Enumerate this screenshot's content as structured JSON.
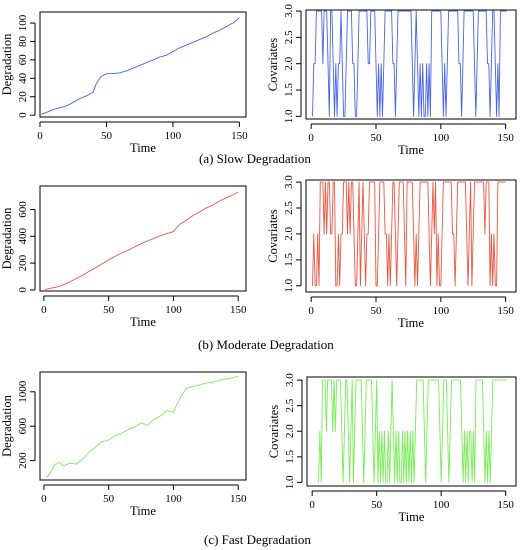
{
  "chart_data": [
    {
      "type": "line",
      "panel": "(a) left",
      "title": "",
      "xlabel": "Time",
      "ylabel": "Degradation",
      "xlim": [
        0,
        155
      ],
      "ylim": [
        -2,
        112
      ],
      "xticks": [
        0,
        50,
        100,
        150
      ],
      "xtick_labels": [
        "0",
        "50",
        "100",
        "150"
      ],
      "yticks": [
        0,
        20,
        40,
        60,
        80,
        100
      ],
      "ytick_labels": [
        "0",
        "20",
        "40",
        "60",
        "80",
        "100"
      ],
      "color": "#4a64e8",
      "x": [
        1,
        5,
        10,
        15,
        20,
        25,
        30,
        35,
        40,
        42,
        44,
        46,
        50,
        55,
        60,
        65,
        70,
        75,
        80,
        85,
        90,
        95,
        100,
        105,
        110,
        115,
        120,
        125,
        130,
        135,
        140,
        145,
        148,
        150
      ],
      "y": [
        1,
        3,
        6,
        8,
        10,
        14,
        18,
        21,
        25,
        33,
        38,
        42,
        45,
        45,
        46,
        48,
        51,
        54,
        57,
        60,
        63,
        65,
        69,
        73,
        76,
        79,
        82,
        85,
        89,
        92,
        96,
        100,
        103,
        106
      ]
    },
    {
      "type": "line",
      "panel": "(a) right",
      "title": "",
      "xlabel": "Time",
      "ylabel": "Covariates",
      "xlim": [
        -4,
        158
      ],
      "ylim": [
        0.95,
        3.02
      ],
      "xticks": [
        0,
        50,
        100,
        150
      ],
      "xtick_labels": [
        "0",
        "50",
        "100",
        "150"
      ],
      "yticks": [
        1.0,
        1.5,
        2.0,
        2.5,
        3.0
      ],
      "ytick_labels": [
        "1.0",
        "1.5",
        "2.0",
        "2.5",
        "3.0"
      ],
      "color": "#4a64e8",
      "t_start": 1,
      "values": [
        1,
        2,
        2,
        3,
        3,
        3,
        3,
        3,
        2,
        3,
        3,
        3,
        2,
        1,
        3,
        3,
        2,
        1,
        2,
        1,
        2,
        2,
        3,
        2,
        1,
        1,
        2,
        3,
        3,
        3,
        3,
        2,
        2,
        1,
        1,
        2,
        3,
        3,
        3,
        3,
        3,
        3,
        3,
        2,
        2,
        3,
        3,
        3,
        3,
        2,
        1,
        2,
        1,
        2,
        1,
        2,
        3,
        3,
        3,
        3,
        3,
        3,
        2,
        2,
        1,
        2,
        3,
        3,
        3,
        3,
        3,
        3,
        3,
        3,
        3,
        3,
        3,
        2,
        1,
        2,
        3,
        2,
        1,
        2,
        1,
        2,
        1,
        1,
        2,
        1,
        2,
        1,
        3,
        3,
        3,
        3,
        3,
        3,
        3,
        3,
        2,
        1,
        2,
        1,
        2,
        3,
        3,
        3,
        3,
        3,
        3,
        3,
        3,
        2,
        2,
        1,
        2,
        3,
        3,
        3,
        3,
        3,
        3,
        3,
        3,
        2,
        1,
        2,
        3,
        3,
        3,
        3,
        3,
        3,
        3,
        2,
        2,
        1,
        2,
        3,
        3,
        2,
        1,
        2,
        1,
        3,
        3,
        3,
        3,
        3,
        3
      ]
    },
    {
      "type": "line",
      "panel": "(b) left",
      "title": "",
      "xlabel": "Time",
      "ylabel": "Degradation",
      "xlim": [
        -3,
        156
      ],
      "ylim": [
        -8,
        775
      ],
      "xticks": [
        0,
        50,
        100,
        150
      ],
      "xtick_labels": [
        "0",
        "50",
        "100",
        "150"
      ],
      "yticks": [
        0,
        200,
        400,
        600
      ],
      "ytick_labels": [
        "0",
        "200",
        "400",
        "600"
      ],
      "color": "#ee5540",
      "x": [
        1,
        5,
        10,
        15,
        20,
        25,
        30,
        35,
        40,
        45,
        50,
        55,
        60,
        65,
        70,
        75,
        80,
        85,
        90,
        95,
        100,
        103,
        105,
        110,
        115,
        120,
        125,
        130,
        135,
        140,
        145,
        150
      ],
      "y": [
        2,
        12,
        22,
        38,
        60,
        85,
        110,
        140,
        165,
        195,
        225,
        250,
        275,
        295,
        320,
        345,
        365,
        385,
        405,
        420,
        435,
        470,
        490,
        520,
        555,
        580,
        610,
        630,
        660,
        685,
        705,
        730
      ]
    },
    {
      "type": "line",
      "panel": "(b) right",
      "title": "",
      "xlabel": "Time",
      "ylabel": "Covariates",
      "xlim": [
        -4,
        158
      ],
      "ylim": [
        0.88,
        3.04
      ],
      "xticks": [
        0,
        50,
        100,
        150
      ],
      "xtick_labels": [
        "0",
        "50",
        "100",
        "150"
      ],
      "yticks": [
        1.0,
        1.5,
        2.0,
        2.5,
        3.0
      ],
      "ytick_labels": [
        "1.0",
        "1.5",
        "2.0",
        "2.5",
        "3.0"
      ],
      "color": "#ee5540",
      "t_start": 1,
      "values": [
        1,
        2,
        1,
        1,
        2,
        1,
        3,
        3,
        3,
        2,
        3,
        2,
        3,
        3,
        2,
        2,
        3,
        3,
        1,
        1,
        2,
        1,
        2,
        2,
        3,
        3,
        3,
        2,
        3,
        2,
        3,
        3,
        2,
        1,
        1,
        2,
        3,
        1,
        2,
        3,
        2,
        1,
        2,
        2,
        3,
        3,
        3,
        3,
        3,
        1,
        1,
        2,
        3,
        3,
        3,
        3,
        2,
        2,
        1,
        2,
        1,
        2,
        3,
        3,
        2,
        1,
        2,
        3,
        3,
        3,
        3,
        2,
        1,
        3,
        3,
        3,
        3,
        3,
        2,
        1,
        2,
        1,
        2,
        3,
        3,
        3,
        3,
        3,
        3,
        3,
        2,
        1,
        2,
        3,
        2,
        3,
        1,
        2,
        1,
        1,
        2,
        3,
        3,
        3,
        3,
        3,
        3,
        3,
        2,
        2,
        1,
        2,
        3,
        3,
        3,
        3,
        3,
        3,
        3,
        2,
        1,
        2,
        3,
        1,
        2,
        3,
        3,
        3,
        3,
        3,
        3,
        3,
        3,
        2,
        3,
        3,
        3,
        1,
        2,
        1,
        2,
        1,
        1,
        3,
        3,
        3,
        3,
        3,
        3,
        3
      ]
    },
    {
      "type": "line",
      "panel": "(c) left",
      "title": "",
      "xlabel": "Time",
      "ylabel": "Degradation",
      "xlim": [
        -3,
        156
      ],
      "ylim": [
        -25,
        1230
      ],
      "xticks": [
        0,
        50,
        100,
        150
      ],
      "xtick_labels": [
        "0",
        "50",
        "100",
        "150"
      ],
      "yticks": [
        200,
        600,
        1000
      ],
      "ytick_labels": [
        "200",
        "600",
        "1000"
      ],
      "color": "#77ee55",
      "x": [
        2,
        5,
        8,
        12,
        15,
        20,
        25,
        30,
        35,
        40,
        45,
        50,
        55,
        60,
        65,
        70,
        75,
        80,
        85,
        90,
        95,
        100,
        103,
        106,
        110,
        115,
        120,
        125,
        130,
        135,
        140,
        145,
        150
      ],
      "y": [
        0,
        60,
        150,
        180,
        140,
        170,
        160,
        220,
        300,
        360,
        420,
        440,
        490,
        520,
        560,
        590,
        640,
        610,
        680,
        720,
        780,
        760,
        860,
        950,
        1040,
        1060,
        1080,
        1100,
        1110,
        1130,
        1150,
        1160,
        1180
      ]
    },
    {
      "type": "line",
      "panel": "(c) right",
      "title": "",
      "xlabel": "Time",
      "ylabel": "Covariates",
      "xlim": [
        -4,
        158
      ],
      "ylim": [
        0.93,
        3.06
      ],
      "xticks": [
        0,
        50,
        100,
        150
      ],
      "xtick_labels": [
        "0",
        "50",
        "100",
        "150"
      ],
      "yticks": [
        1.0,
        1.5,
        2.0,
        2.5,
        3.0
      ],
      "ytick_labels": [
        "1.0",
        "1.5",
        "2.0",
        "2.5",
        "3.0"
      ],
      "color": "#77ee55",
      "t_start": 5,
      "values": [
        1,
        2,
        1,
        3,
        3,
        3,
        2,
        3,
        3,
        3,
        3,
        2,
        3,
        2,
        3,
        3,
        3,
        3,
        2,
        1,
        2,
        3,
        3,
        2,
        1,
        2,
        3,
        1,
        2,
        3,
        3,
        3,
        3,
        3,
        2,
        1,
        2,
        3,
        3,
        3,
        3,
        3,
        2,
        1,
        2,
        3,
        1,
        2,
        1,
        2,
        1,
        2,
        1,
        1,
        2,
        1,
        2,
        3,
        2,
        1,
        2,
        1,
        2,
        1,
        1,
        2,
        1,
        2,
        1,
        2,
        1,
        2,
        1,
        2,
        1,
        2,
        3,
        3,
        3,
        3,
        3,
        3,
        2,
        1,
        2,
        3,
        3,
        3,
        3,
        3,
        3,
        3,
        3,
        3,
        2,
        1,
        2,
        3,
        3,
        3,
        2,
        1,
        2,
        3,
        3,
        3,
        3,
        3,
        3,
        3,
        3,
        2,
        1,
        2,
        1,
        2,
        1,
        2,
        2,
        1,
        2,
        1,
        3,
        3,
        3,
        3,
        3,
        3,
        2,
        1,
        2,
        1,
        2,
        1,
        2,
        3,
        3,
        3,
        3,
        3,
        3,
        3,
        3,
        3,
        3,
        3,
        3
      ]
    }
  ],
  "captions": [
    "(a) Slow Degradation",
    "(b) Moderate Degradation",
    "(c) Fast Degradation"
  ]
}
